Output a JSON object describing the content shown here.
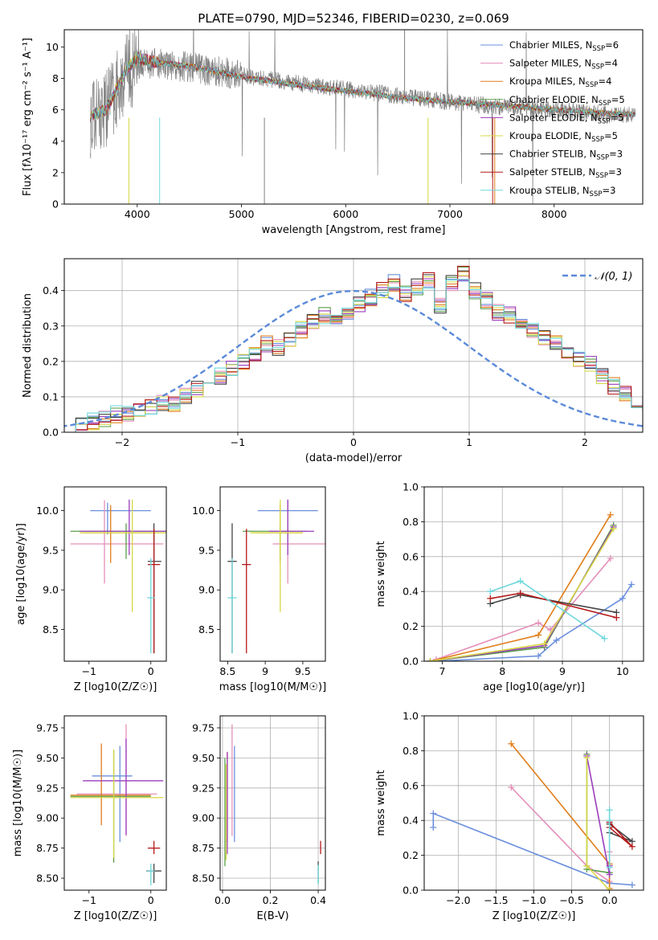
{
  "figure_title": "PLATE=0790, MJD=52346, FIBERID=0230, z=0.069",
  "colors": {
    "Chabrier MILES": "#6a8fdd",
    "Salpeter MILES": "#e58fb8",
    "Kroupa MILES": "#e07e1b",
    "Chabrier ELODIE": "#5a9e4a",
    "Salpeter ELODIE": "#9b3dbd",
    "Kroupa ELODIE": "#d6d844",
    "Chabrier STELIB": "#444444",
    "Salpeter STELIB": "#b51a1a",
    "Kroupa STELIB": "#6fd8dc",
    "data": "#808080",
    "normal": "#5b8ad9"
  },
  "chart_data": [
    {
      "id": "spectrum",
      "type": "line",
      "title": "PLATE=0790, MJD=52346, FIBERID=0230, z=0.069",
      "xlabel": "wavelength [Angstrom, rest frame]",
      "ylabel": "Flux [fλ10⁻¹⁷ erg cm⁻² s⁻¹ A⁻¹]",
      "xlim": [
        3300,
        8850
      ],
      "ylim": [
        0,
        11.1
      ],
      "xticks": [
        4000,
        5000,
        6000,
        7000,
        8000
      ],
      "yticks": [
        0,
        2,
        4,
        6,
        8,
        10
      ],
      "grid": false,
      "legend_position": "top-right",
      "legend": [
        {
          "label": "Chabrier MILES, N",
          "sub": "SSP",
          "tail": "=6"
        },
        {
          "label": "Salpeter MILES, N",
          "sub": "SSP",
          "tail": "=4"
        },
        {
          "label": "Kroupa MILES, N",
          "sub": "SSP",
          "tail": "=4"
        },
        {
          "label": "Chabrier ELODIE, N",
          "sub": "SSP",
          "tail": "=5"
        },
        {
          "label": "Salpeter ELODIE, N",
          "sub": "SSP",
          "tail": "=5"
        },
        {
          "label": "Kroupa ELODIE, N",
          "sub": "SSP",
          "tail": "=5"
        },
        {
          "label": "Chabrier STELIB, N",
          "sub": "SSP",
          "tail": "=3"
        },
        {
          "label": "Salpeter STELIB, N",
          "sub": "SSP",
          "tail": "=3"
        },
        {
          "label": "Kroupa STELIB, N",
          "sub": "SSP",
          "tail": "=3"
        }
      ],
      "model_envelope": {
        "x": [
          3550,
          3700,
          3900,
          4000,
          4200,
          4500,
          5000,
          5500,
          6000,
          6500,
          7000,
          7500,
          8000,
          8500,
          8800
        ],
        "y": [
          5.6,
          6.0,
          8.6,
          9.3,
          9.0,
          8.8,
          8.1,
          7.6,
          7.2,
          6.8,
          6.5,
          6.3,
          6.0,
          5.8,
          5.7
        ]
      },
      "data_envelope": {
        "x": [
          3550,
          3700,
          3900,
          4000,
          4200,
          4500,
          5000,
          5500,
          6000,
          6500,
          7000,
          7500,
          8000,
          8500,
          8800
        ],
        "y": [
          5.3,
          6.2,
          8.4,
          8.9,
          9.0,
          8.7,
          8.2,
          7.7,
          7.3,
          6.9,
          6.5,
          6.2,
          6.0,
          5.7,
          5.7
        ]
      }
    },
    {
      "id": "residual_histogram",
      "type": "histogram",
      "xlabel": "(data-model)/error",
      "ylabel": "Normed distribution",
      "xlim": [
        -2.5,
        2.5
      ],
      "ylim": [
        0,
        0.49
      ],
      "xticks": [
        -2,
        -1,
        0,
        1,
        2
      ],
      "yticks": [
        0.0,
        0.1,
        0.2,
        0.3,
        0.4
      ],
      "grid": true,
      "legend_position": "top-right",
      "legend": [
        {
          "label": "𝒩(0, 1)"
        }
      ],
      "bin_width": 0.1,
      "bin_start": -2.5,
      "hist_main": [
        0.02,
        0.025,
        0.03,
        0.04,
        0.05,
        0.055,
        0.06,
        0.075,
        0.085,
        0.08,
        0.1,
        0.12,
        0.14,
        0.16,
        0.18,
        0.2,
        0.22,
        0.25,
        0.24,
        0.26,
        0.29,
        0.31,
        0.33,
        0.32,
        0.34,
        0.36,
        0.38,
        0.4,
        0.42,
        0.39,
        0.41,
        0.43,
        0.36,
        0.42,
        0.45,
        0.4,
        0.37,
        0.34,
        0.33,
        0.31,
        0.29,
        0.27,
        0.25,
        0.23,
        0.21,
        0.19,
        0.16,
        0.13,
        0.11,
        0.09,
        0.08,
        0.07,
        0.06,
        0.05,
        0.045,
        0.04,
        0.035,
        0.03,
        0.025,
        0.02
      ],
      "normal_mu": 0,
      "normal_sigma": 1
    },
    {
      "id": "age_vs_Z",
      "type": "errorbar",
      "xlabel": "Z [log10(Z/Z☉)]",
      "ylabel": "age [log10(age/yr)]",
      "xlim": [
        -1.4,
        0.25
      ],
      "ylim": [
        8.1,
        10.3
      ],
      "xticks": [
        -1,
        0
      ],
      "yticks": [
        8.5,
        9.0,
        9.5,
        10.0
      ],
      "grid": false,
      "points": [
        {
          "model": "Chabrier MILES",
          "x": -0.7,
          "xerr": [
            0.28,
            0.7
          ],
          "y": 10.0,
          "yerr": [
            0.3,
            0.1
          ]
        },
        {
          "model": "Salpeter MILES",
          "x": -0.75,
          "xerr": [
            0.55,
            0.95
          ],
          "y": 9.58,
          "yerr": [
            0.5,
            0.55
          ]
        },
        {
          "model": "Kroupa MILES",
          "x": -0.65,
          "xerr": [
            0.45,
            0.65
          ],
          "y": 9.72,
          "yerr": [
            0.38,
            0.35
          ]
        },
        {
          "model": "Chabrier ELODIE",
          "x": -0.4,
          "xerr": [
            0.9,
            0.85
          ],
          "y": 9.74,
          "yerr": [
            0.35,
            0.1
          ]
        },
        {
          "model": "Salpeter ELODIE",
          "x": -0.35,
          "xerr": [
            0.8,
            0.6
          ],
          "y": 9.74,
          "yerr": [
            0.3,
            0.4
          ]
        },
        {
          "model": "Kroupa ELODIE",
          "x": -0.3,
          "xerr": [
            0.85,
            0.55
          ],
          "y": 9.72,
          "yerr": [
            1.0,
            0.42
          ]
        },
        {
          "model": "Chabrier STELIB",
          "x": 0.05,
          "xerr": [
            0.1,
            0.12
          ],
          "y": 9.36,
          "yerr": [
            1.16,
            0.48
          ]
        },
        {
          "model": "Salpeter STELIB",
          "x": 0.05,
          "xerr": [
            0.1,
            0.1
          ],
          "y": 9.32,
          "yerr": [
            1.12,
            0.45
          ]
        },
        {
          "model": "Kroupa STELIB",
          "x": 0.0,
          "xerr": [
            0.06,
            0.06
          ],
          "y": 8.9,
          "yerr": [
            0.7,
            0.5
          ]
        }
      ]
    },
    {
      "id": "age_vs_mass",
      "type": "errorbar",
      "xlabel": "mass [log10(M/M☉)]",
      "ylabel": "",
      "xlim": [
        8.4,
        9.8
      ],
      "ylim": [
        8.1,
        10.3
      ],
      "xticks": [
        8.5,
        9.0,
        9.5
      ],
      "yticks": [
        8.5,
        9.0,
        9.5,
        10.0
      ],
      "grid": false,
      "points": [
        {
          "model": "Chabrier MILES",
          "x": 9.3,
          "xerr": [
            0.4,
            0.4
          ],
          "y": 10.0,
          "yerr": [
            0.3,
            0.1
          ]
        },
        {
          "model": "Salpeter MILES",
          "x": 9.3,
          "xerr": [
            0.2,
            0.5
          ],
          "y": 9.58,
          "yerr": [
            0.5,
            0.55
          ]
        },
        {
          "model": "Kroupa MILES",
          "x": 9.2,
          "xerr": [
            0.3,
            0.3
          ],
          "y": 9.72,
          "yerr": [
            0.38,
            0.35
          ]
        },
        {
          "model": "Chabrier ELODIE",
          "x": 9.2,
          "xerr": [
            0.5,
            0.35
          ],
          "y": 9.74,
          "yerr": [
            0.35,
            0.1
          ]
        },
        {
          "model": "Salpeter ELODIE",
          "x": 9.3,
          "xerr": [
            0.25,
            0.35
          ],
          "y": 9.74,
          "yerr": [
            0.3,
            0.4
          ]
        },
        {
          "model": "Kroupa ELODIE",
          "x": 9.2,
          "xerr": [
            0.4,
            0.3
          ],
          "y": 9.72,
          "yerr": [
            1.0,
            0.42
          ]
        },
        {
          "model": "Chabrier STELIB",
          "x": 8.56,
          "xerr": [
            0.06,
            0.06
          ],
          "y": 9.36,
          "yerr": [
            1.16,
            0.48
          ]
        },
        {
          "model": "Salpeter STELIB",
          "x": 8.75,
          "xerr": [
            0.06,
            0.06
          ],
          "y": 9.32,
          "yerr": [
            1.12,
            0.45
          ]
        },
        {
          "model": "Kroupa STELIB",
          "x": 8.56,
          "xerr": [
            0.06,
            0.06
          ],
          "y": 8.9,
          "yerr": [
            0.7,
            0.5
          ]
        }
      ]
    },
    {
      "id": "massweight_vs_age",
      "type": "line",
      "xlabel": "age [log10(age/yr)]",
      "ylabel": "mass weight",
      "xlim": [
        6.7,
        10.35
      ],
      "ylim": [
        0,
        1
      ],
      "xticks": [
        7,
        8,
        9,
        10
      ],
      "yticks": [
        0.0,
        0.2,
        0.4,
        0.6,
        0.8,
        1.0
      ],
      "grid": true,
      "series": [
        {
          "model": "Chabrier MILES",
          "x": [
            6.9,
            8.6,
            8.9,
            10.0,
            10.15
          ],
          "y": [
            0.0,
            0.03,
            0.12,
            0.36,
            0.44
          ]
        },
        {
          "model": "Salpeter MILES",
          "x": [
            6.9,
            8.6,
            8.8,
            9.8
          ],
          "y": [
            0.01,
            0.22,
            0.18,
            0.59
          ]
        },
        {
          "model": "Kroupa MILES",
          "x": [
            6.8,
            8.6,
            9.8
          ],
          "y": [
            0.0,
            0.15,
            0.84
          ]
        },
        {
          "model": "Chabrier ELODIE",
          "x": [
            6.8,
            8.7,
            9.85
          ],
          "y": [
            0.0,
            0.08,
            0.78
          ]
        },
        {
          "model": "Salpeter ELODIE",
          "x": [
            6.8,
            8.7,
            9.85
          ],
          "y": [
            0.0,
            0.09,
            0.77
          ]
        },
        {
          "model": "Kroupa ELODIE",
          "x": [
            6.8,
            8.7,
            9.85
          ],
          "y": [
            0.0,
            0.1,
            0.76
          ]
        },
        {
          "model": "Chabrier STELIB",
          "x": [
            7.8,
            8.3,
            9.9
          ],
          "y": [
            0.33,
            0.38,
            0.28
          ]
        },
        {
          "model": "Salpeter STELIB",
          "x": [
            7.8,
            8.3,
            9.9
          ],
          "y": [
            0.36,
            0.39,
            0.25
          ]
        },
        {
          "model": "Kroupa STELIB",
          "x": [
            7.8,
            8.3,
            9.7
          ],
          "y": [
            0.4,
            0.46,
            0.13
          ]
        }
      ]
    },
    {
      "id": "mass_vs_Z",
      "type": "errorbar",
      "xlabel": "Z [log10(Z/Z☉)]",
      "ylabel": "mass [log10(M/M☉)]",
      "xlim": [
        -1.4,
        0.25
      ],
      "ylim": [
        8.4,
        9.85
      ],
      "xticks": [
        -1,
        0
      ],
      "yticks": [
        8.5,
        8.75,
        9.0,
        9.25,
        9.5,
        9.75
      ],
      "grid": false,
      "points": [
        {
          "model": "Chabrier MILES",
          "x": -0.5,
          "xerr": [
            0.45,
            0.2
          ],
          "y": 9.35,
          "yerr": [
            0.55,
            0.25
          ]
        },
        {
          "model": "Salpeter MILES",
          "x": -0.4,
          "xerr": [
            0.8,
            0.5
          ],
          "y": 9.2,
          "yerr": [
            0.35,
            0.58
          ]
        },
        {
          "model": "Kroupa MILES",
          "x": -0.8,
          "xerr": [
            0.5,
            0.8
          ],
          "y": 9.19,
          "yerr": [
            0.25,
            0.43
          ]
        },
        {
          "model": "Chabrier ELODIE",
          "x": -0.6,
          "xerr": [
            0.7,
            0.6
          ],
          "y": 9.18,
          "yerr": [
            0.55,
            0.38
          ]
        },
        {
          "model": "Salpeter ELODIE",
          "x": -0.4,
          "xerr": [
            0.7,
            0.6
          ],
          "y": 9.31,
          "yerr": [
            0.45,
            0.35
          ]
        },
        {
          "model": "Kroupa ELODIE",
          "x": -0.6,
          "xerr": [
            0.7,
            0.8
          ],
          "y": 9.17,
          "yerr": [
            0.5,
            0.4
          ]
        },
        {
          "model": "Chabrier STELIB",
          "x": 0.05,
          "xerr": [
            0.12,
            0.12
          ],
          "y": 8.56,
          "yerr": [
            0.1,
            0.06
          ]
        },
        {
          "model": "Salpeter STELIB",
          "x": 0.05,
          "xerr": [
            0.1,
            0.1
          ],
          "y": 8.75,
          "yerr": [
            0.05,
            0.06
          ]
        },
        {
          "model": "Kroupa STELIB",
          "x": 0.0,
          "xerr": [
            0.06,
            0.06
          ],
          "y": 8.56,
          "yerr": [
            0.12,
            0.06
          ]
        }
      ]
    },
    {
      "id": "mass_vs_EBV",
      "type": "errorbar",
      "xlabel": "E(B-V)",
      "ylabel": "",
      "xlim": [
        -0.01,
        0.43
      ],
      "ylim": [
        8.4,
        9.85
      ],
      "xticks": [
        0.0,
        0.2,
        0.4
      ],
      "yticks": [
        8.5,
        8.75,
        9.0,
        9.25,
        9.5,
        9.75
      ],
      "grid": true,
      "points": [
        {
          "model": "Chabrier MILES",
          "x": 0.05,
          "xerr": [
            0,
            0
          ],
          "y": 9.1,
          "yerr": [
            0.3,
            0.5
          ]
        },
        {
          "model": "Salpeter MILES",
          "x": 0.04,
          "xerr": [
            0,
            0
          ],
          "y": 9.2,
          "yerr": [
            0.35,
            0.58
          ]
        },
        {
          "model": "Kroupa MILES",
          "x": 0.02,
          "xerr": [
            0,
            0
          ],
          "y": 9.1,
          "yerr": [
            0.3,
            0.45
          ]
        },
        {
          "model": "Chabrier ELODIE",
          "x": 0.01,
          "xerr": [
            0,
            0
          ],
          "y": 9.0,
          "yerr": [
            0.4,
            0.5
          ]
        },
        {
          "model": "Salpeter ELODIE",
          "x": 0.02,
          "xerr": [
            0,
            0
          ],
          "y": 9.1,
          "yerr": [
            0.4,
            0.45
          ]
        },
        {
          "model": "Kroupa ELODIE",
          "x": 0.015,
          "xerr": [
            0,
            0
          ],
          "y": 9.05,
          "yerr": [
            0.4,
            0.4
          ]
        },
        {
          "model": "Chabrier STELIB",
          "x": 0.4,
          "xerr": [
            0,
            0
          ],
          "y": 8.56,
          "yerr": [
            0.1,
            0.08
          ]
        },
        {
          "model": "Salpeter STELIB",
          "x": 0.41,
          "xerr": [
            0,
            0
          ],
          "y": 8.75,
          "yerr": [
            0.05,
            0.06
          ]
        },
        {
          "model": "Kroupa STELIB",
          "x": 0.4,
          "xerr": [
            0,
            0
          ],
          "y": 8.55,
          "yerr": [
            0.1,
            0.06
          ]
        }
      ]
    },
    {
      "id": "massweight_vs_Z",
      "type": "line",
      "xlabel": "Z [log10(Z/Z☉)]",
      "ylabel": "mass weight",
      "xlim": [
        -2.45,
        0.45
      ],
      "ylim": [
        0,
        1
      ],
      "xticks": [
        -2.0,
        -1.5,
        -1.0,
        -0.5,
        0.0
      ],
      "yticks": [
        0.0,
        0.2,
        0.4,
        0.6,
        0.8,
        1.0
      ],
      "grid": true,
      "series": [
        {
          "model": "Chabrier MILES",
          "x": [
            -2.33,
            -2.33,
            0.0,
            0.3
          ],
          "y": [
            0.36,
            0.44,
            0.04,
            0.03
          ]
        },
        {
          "model": "Salpeter MILES",
          "x": [
            -1.3,
            -0.3,
            0.0,
            0.0
          ],
          "y": [
            0.59,
            0.14,
            0.05,
            0.22
          ]
        },
        {
          "model": "Kroupa MILES",
          "x": [
            -1.3,
            0.0,
            0.0
          ],
          "y": [
            0.84,
            0.15,
            0.01
          ]
        },
        {
          "model": "Chabrier ELODIE",
          "x": [
            -0.3,
            -0.3,
            0.0
          ],
          "y": [
            0.78,
            0.12,
            0.1
          ]
        },
        {
          "model": "Salpeter ELODIE",
          "x": [
            -0.3,
            0.0,
            0.0
          ],
          "y": [
            0.77,
            0.09,
            0.14
          ]
        },
        {
          "model": "Kroupa ELODIE",
          "x": [
            -0.3,
            -0.3,
            0.0
          ],
          "y": [
            0.76,
            0.14,
            0.0
          ]
        },
        {
          "model": "Chabrier STELIB",
          "x": [
            0.0,
            0.3,
            0.0
          ],
          "y": [
            0.38,
            0.28,
            0.33
          ]
        },
        {
          "model": "Salpeter STELIB",
          "x": [
            0.0,
            0.3,
            0.0
          ],
          "y": [
            0.39,
            0.25,
            0.36
          ]
        },
        {
          "model": "Kroupa STELIB",
          "x": [
            0.0,
            0.0,
            0.0
          ],
          "y": [
            0.46,
            0.4,
            0.13
          ]
        }
      ]
    }
  ]
}
